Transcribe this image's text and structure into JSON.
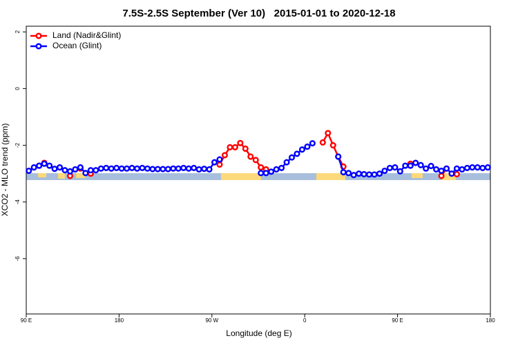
{
  "chart_data": {
    "type": "line",
    "title": "7.5S-2.5S September (Ver 10)   2015-01-01 to 2020-12-18",
    "x_label": "Longitude (deg E)",
    "y_label": "XCO2 - MLO trend (ppm)",
    "x": [
      92.5,
      97.5,
      102.5,
      107.5,
      112.5,
      117.5,
      122.5,
      127.5,
      132.5,
      137.5,
      142.5,
      147.5,
      152.5,
      157.5,
      162.5,
      167.5,
      172.5,
      177.5,
      182.5,
      187.5,
      192.5,
      197.5,
      202.5,
      207.5,
      212.5,
      217.5,
      222.5,
      227.5,
      232.5,
      237.5,
      242.5,
      247.5,
      252.5,
      257.5,
      262.5,
      267.5,
      272.5,
      277.5,
      282.5,
      287.5,
      292.5,
      297.5,
      302.5,
      307.5,
      312.5,
      317.5,
      322.5,
      327.5,
      332.5,
      337.5,
      342.5,
      347.5,
      352.5,
      357.5,
      362.5,
      367.5,
      372.5,
      377.5,
      382.5,
      387.5,
      392.5,
      397.5,
      402.5,
      407.5,
      412.5,
      417.5,
      422.5,
      427.5,
      432.5,
      437.5,
      442.5,
      447.5,
      452.5,
      457.5,
      462.5,
      467.5,
      472.5,
      477.5,
      482.5,
      487.5,
      492.5,
      497.5,
      502.5,
      507.5,
      512.5,
      517.5,
      522.5,
      527.5,
      532.5,
      537.5
    ],
    "series": [
      {
        "name": "Land (Nadir&Glint)",
        "color": "#ff0000",
        "values": [
          null,
          null,
          -2.72,
          -2.62,
          null,
          null,
          null,
          null,
          -3.08,
          null,
          -2.82,
          null,
          -3.0,
          null,
          null,
          null,
          null,
          null,
          null,
          null,
          null,
          null,
          null,
          null,
          null,
          null,
          null,
          null,
          null,
          null,
          null,
          null,
          null,
          null,
          null,
          null,
          null,
          -2.68,
          -2.35,
          -2.07,
          -2.07,
          -1.92,
          -2.12,
          -2.4,
          -2.52,
          -2.78,
          -2.85,
          null,
          null,
          null,
          null,
          null,
          null,
          null,
          null,
          null,
          null,
          -1.9,
          -1.57,
          -2.0,
          -2.4,
          -2.75,
          null,
          null,
          null,
          null,
          null,
          null,
          null,
          null,
          null,
          null,
          null,
          null,
          -2.65,
          null,
          null,
          null,
          null,
          null,
          -3.08,
          -2.82,
          null,
          -3.02,
          null,
          null,
          null,
          null,
          null,
          null
        ]
      },
      {
        "name": "Ocean (Glint)",
        "color": "#0000ff",
        "values": [
          -2.9,
          -2.78,
          -2.72,
          -2.65,
          -2.72,
          -2.83,
          -2.78,
          -2.88,
          -2.92,
          -2.85,
          -2.78,
          -2.98,
          -2.88,
          -2.88,
          -2.82,
          -2.8,
          -2.82,
          -2.8,
          -2.82,
          -2.82,
          -2.8,
          -2.82,
          -2.8,
          -2.82,
          -2.84,
          -2.84,
          -2.84,
          -2.84,
          -2.82,
          -2.82,
          -2.8,
          -2.82,
          -2.8,
          -2.85,
          -2.83,
          -2.85,
          -2.6,
          -2.5,
          null,
          null,
          null,
          null,
          null,
          null,
          null,
          -2.98,
          -2.98,
          -2.93,
          -2.85,
          -2.8,
          -2.6,
          -2.43,
          -2.3,
          -2.15,
          -2.05,
          -1.93,
          null,
          null,
          null,
          null,
          -2.4,
          -2.95,
          -2.98,
          -3.05,
          -3.0,
          -3.02,
          -3.03,
          -3.03,
          -3.0,
          -2.9,
          -2.8,
          -2.78,
          -2.92,
          -2.72,
          -2.72,
          -2.62,
          -2.7,
          -2.82,
          -2.73,
          -2.85,
          -2.9,
          -2.82,
          -3.0,
          -2.82,
          -2.85,
          -2.8,
          -2.78,
          -2.78,
          -2.8,
          -2.78
        ]
      }
    ],
    "xlim": [
      90,
      540
    ],
    "xticks": [
      {
        "value": 90,
        "label": "90 E"
      },
      180,
      {
        "value": 270,
        "label": "90 W"
      },
      {
        "value": 360,
        "label": "0"
      },
      {
        "value": 450,
        "label": "90 E"
      },
      {
        "value": 540,
        "label": "180"
      }
    ],
    "ylim": [
      -7.95,
      2.2
    ],
    "yticks": [
      2,
      0,
      -2,
      -4,
      -6
    ],
    "legend": "top-left"
  }
}
